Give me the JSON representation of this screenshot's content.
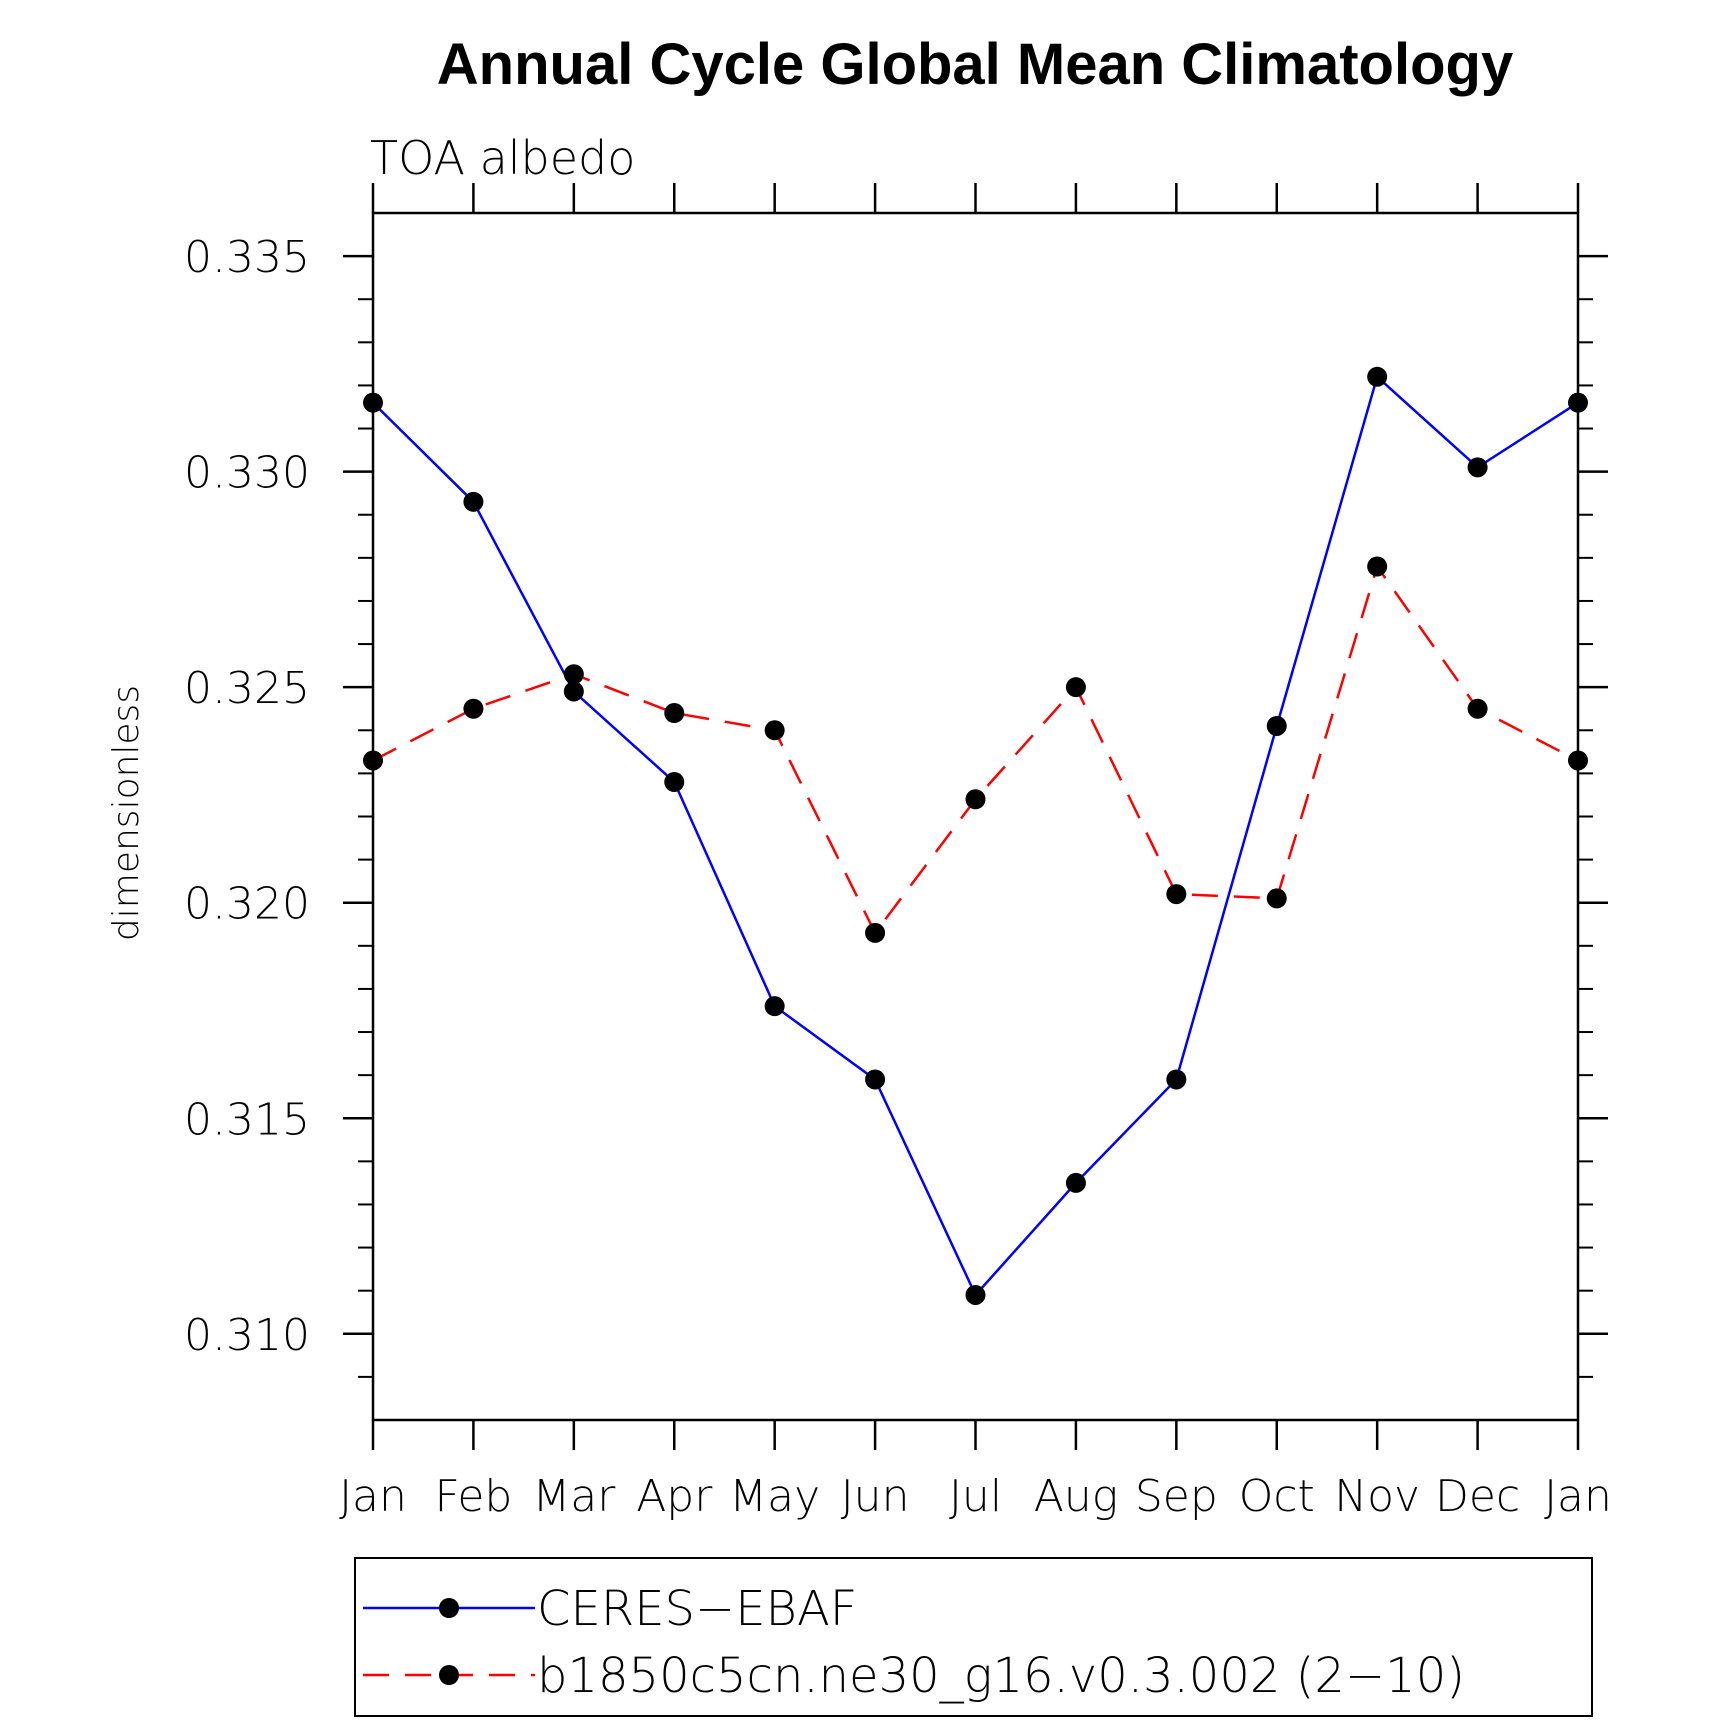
{
  "chart_data": {
    "type": "line",
    "title": "Annual Cycle Global Mean Climatology",
    "subtitle": "TOA albedo",
    "ylabel": "dimensionless",
    "xlabel": "",
    "categories": [
      "Jan",
      "Feb",
      "Mar",
      "Apr",
      "May",
      "Jun",
      "Jul",
      "Aug",
      "Sep",
      "Oct",
      "Nov",
      "Dec",
      "Jan"
    ],
    "ylim": [
      0.308,
      0.336
    ],
    "yticks": [
      "0.310",
      "0.315",
      "0.320",
      "0.325",
      "0.330",
      "0.335"
    ],
    "legend_position": "bottom",
    "grid": false,
    "series": [
      {
        "name": "CERES−EBAF",
        "color": "#0000ff",
        "line_style": "solid",
        "marker": "filled-circle",
        "values": [
          0.3316,
          0.3293,
          0.3249,
          0.3228,
          0.3176,
          0.3159,
          0.3109,
          0.3135,
          0.3159,
          0.3241,
          0.3322,
          0.3301,
          0.3316
        ]
      },
      {
        "name": "b1850c5cn.ne30_g16.v0.3.002 (2−10)",
        "color": "#ff0000",
        "line_style": "dashed",
        "marker": "filled-circle",
        "values": [
          0.3233,
          0.3245,
          0.3253,
          0.3244,
          0.324,
          0.3193,
          0.3224,
          0.325,
          0.3202,
          0.3201,
          0.3278,
          0.3245,
          0.3233
        ]
      }
    ]
  }
}
